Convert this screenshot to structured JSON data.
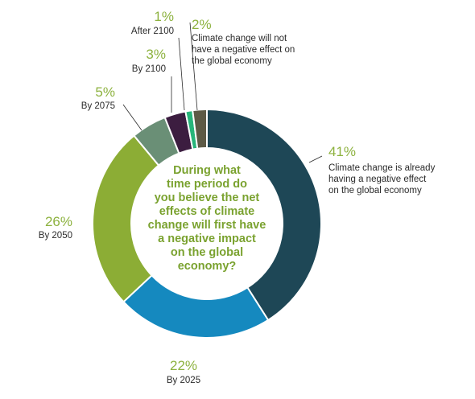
{
  "chart_data": {
    "type": "pie",
    "title": "During what time period do you believe the net effects of climate change will first have a negative impact on the global economy?",
    "title_lines": [
      "During what",
      "time period do",
      "you believe the net",
      "effects of climate",
      "change will first have",
      "a negative impact",
      "on the global",
      "economy?"
    ],
    "slices": [
      {
        "label": "Climate change is already having a negative effect on the global economy",
        "label_lines": [
          "Climate change is already",
          "having a negative effect",
          "on the global economy"
        ],
        "value": 41,
        "pct_label": "41%",
        "color": "#1e4756"
      },
      {
        "label": "By 2025",
        "label_lines": [
          "By 2025"
        ],
        "value": 22,
        "pct_label": "22%",
        "color": "#1589bf"
      },
      {
        "label": "By 2050",
        "label_lines": [
          "By 2050"
        ],
        "value": 26,
        "pct_label": "26%",
        "color": "#8cad35"
      },
      {
        "label": "By 2075",
        "label_lines": [
          "By 2075"
        ],
        "value": 5,
        "pct_label": "5%",
        "color": "#6a8f76"
      },
      {
        "label": "By 2100",
        "label_lines": [
          "By 2100"
        ],
        "value": 3,
        "pct_label": "3%",
        "color": "#3c1d40"
      },
      {
        "label": "After 2100",
        "label_lines": [
          "After 2100"
        ],
        "value": 1,
        "pct_label": "1%",
        "color": "#27b57a"
      },
      {
        "label": "Climate change will not have a negative effect on the global economy",
        "label_lines": [
          "Climate change will not",
          "have a negative effect on",
          "the global economy"
        ],
        "value": 2,
        "pct_label": "2%",
        "color": "#5d5a46"
      }
    ]
  }
}
